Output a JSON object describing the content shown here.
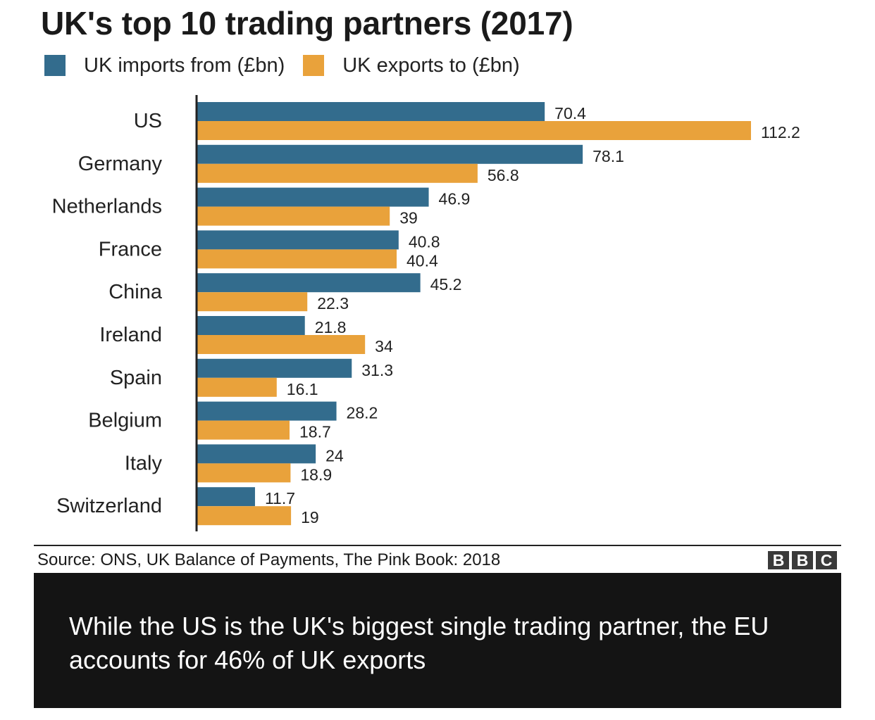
{
  "title": "UK's top 10 trading partners (2017)",
  "legend": {
    "imports_label": "UK imports from (£bn)",
    "exports_label": "UK exports to (£bn)"
  },
  "colors": {
    "imports": "#336c8d",
    "exports": "#e9a23b"
  },
  "source": "Source: ONS, UK Balance of Payments, The Pink Book: 2018",
  "logo_letters": [
    "B",
    "B",
    "C"
  ],
  "caption": "While the US is the UK's biggest single trading partner, the EU accounts for 46% of UK exports",
  "chart_data": {
    "type": "bar",
    "orientation": "horizontal",
    "title": "UK's top 10 trading partners (2017)",
    "categories": [
      "US",
      "Germany",
      "Netherlands",
      "France",
      "China",
      "Ireland",
      "Spain",
      "Belgium",
      "Italy",
      "Switzerland"
    ],
    "series": [
      {
        "name": "UK imports from (£bn)",
        "values": [
          70.4,
          78.1,
          46.9,
          40.8,
          45.2,
          21.8,
          31.3,
          28.2,
          24,
          11.7
        ],
        "labels": [
          "70.4",
          "78.1",
          "46.9",
          "40.8",
          "45.2",
          "21.8",
          "31.3",
          "28.2",
          "24",
          "11.7"
        ]
      },
      {
        "name": "UK exports to (£bn)",
        "values": [
          112.2,
          56.8,
          39,
          40.4,
          22.3,
          34,
          16.1,
          18.7,
          18.9,
          19
        ],
        "labels": [
          "112.2",
          "56.8",
          "39",
          "40.4",
          "22.3",
          "34",
          "16.1",
          "18.7",
          "18.9",
          "19"
        ]
      }
    ],
    "xlim": [
      0,
      112.2
    ],
    "grid": false,
    "legend_position": "top-left"
  }
}
